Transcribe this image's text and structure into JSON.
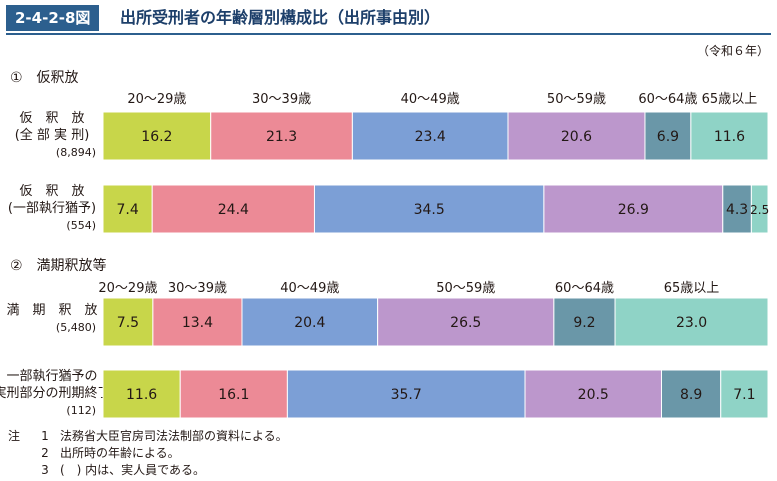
{
  "figure": {
    "number": "2-4-2-8図",
    "title": "出所受刑者の年齢層別構成比（出所事由別）",
    "year_note": "（令和６年）"
  },
  "colors": {
    "age20_29": "#c8d64a",
    "age30_39": "#ec8a96",
    "age40_49": "#7c9fd6",
    "age50_59": "#bc97cc",
    "age60_64": "#6a97a8",
    "age65plus": "#8fd3c6",
    "badge": "#2c5f8e"
  },
  "sections": [
    {
      "heading": "①　仮釈放"
    },
    {
      "heading": "②　満期釈放等"
    }
  ],
  "chart_data": [
    {
      "type": "bar",
      "stacked": true,
      "orientation": "horizontal",
      "unit": "%",
      "categories": [
        "20～29歳",
        "30～39歳",
        "40～49歳",
        "50～59歳",
        "60～64歳",
        "65歳以上"
      ],
      "rows": [
        {
          "label_lines": [
            "仮　釈　放",
            "(全 部 実 刑)"
          ],
          "count": "(8,894)",
          "values": [
            16.2,
            21.3,
            23.4,
            20.6,
            6.9,
            11.6
          ]
        },
        {
          "label_lines": [
            "仮　釈　放",
            "(一部執行猶予)"
          ],
          "count": "(554)",
          "values": [
            7.4,
            24.4,
            34.5,
            26.9,
            4.3,
            2.5
          ]
        }
      ]
    },
    {
      "type": "bar",
      "stacked": true,
      "orientation": "horizontal",
      "unit": "%",
      "categories": [
        "20～29歳",
        "30～39歳",
        "40～49歳",
        "50～59歳",
        "60～64歳",
        "65歳以上"
      ],
      "rows": [
        {
          "label_lines": [
            "満　期　釈　放"
          ],
          "count": "(5,480)",
          "values": [
            7.5,
            13.4,
            20.4,
            26.5,
            9.2,
            23.0
          ]
        },
        {
          "label_lines": [
            "一部執行猶予の",
            "実刑部分の刑期終了"
          ],
          "count": "(112)",
          "values": [
            11.6,
            16.1,
            35.7,
            20.5,
            8.9,
            7.1
          ]
        }
      ]
    }
  ],
  "notes": [
    {
      "prefix": "注",
      "num": "1",
      "text": "法務省大臣官房司法法制部の資料による。"
    },
    {
      "prefix": "",
      "num": "2",
      "text": "出所時の年齢による。"
    },
    {
      "prefix": "",
      "num": "3",
      "text": "(　) 内は、実人員である。"
    }
  ]
}
